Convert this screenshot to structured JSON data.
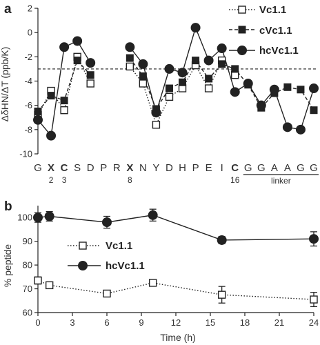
{
  "chart_data": [
    {
      "panel": "a",
      "type": "line",
      "ylabel": "ΔδHN/ΔT (ppb/K)",
      "ylim": [
        -10,
        2
      ],
      "yticks": [
        2,
        0,
        -2,
        -4,
        -6,
        -8,
        -10
      ],
      "grid": false,
      "legend": "top-right",
      "threshold_line": -3,
      "residues": [
        {
          "aa": "G",
          "bold": false,
          "num": ""
        },
        {
          "aa": "X",
          "bold": true,
          "num": "2"
        },
        {
          "aa": "C",
          "bold": true,
          "num": "3"
        },
        {
          "aa": "S",
          "bold": false,
          "num": ""
        },
        {
          "aa": "D",
          "bold": false,
          "num": ""
        },
        {
          "aa": "P",
          "bold": false,
          "num": ""
        },
        {
          "aa": "R",
          "bold": false,
          "num": ""
        },
        {
          "aa": "X",
          "bold": true,
          "num": "8"
        },
        {
          "aa": "N",
          "bold": false,
          "num": ""
        },
        {
          "aa": "Y",
          "bold": false,
          "num": ""
        },
        {
          "aa": "D",
          "bold": false,
          "num": ""
        },
        {
          "aa": "H",
          "bold": false,
          "num": ""
        },
        {
          "aa": "P",
          "bold": false,
          "num": ""
        },
        {
          "aa": "E",
          "bold": false,
          "num": ""
        },
        {
          "aa": "I",
          "bold": false,
          "num": ""
        },
        {
          "aa": "C",
          "bold": true,
          "num": "16"
        },
        {
          "aa": "G",
          "bold": false,
          "num": ""
        },
        {
          "aa": "G",
          "bold": false,
          "num": ""
        },
        {
          "aa": "A",
          "bold": false,
          "num": ""
        },
        {
          "aa": "A",
          "bold": false,
          "num": ""
        },
        {
          "aa": "G",
          "bold": false,
          "num": ""
        },
        {
          "aa": "G",
          "bold": false,
          "num": ""
        }
      ],
      "linker_label": "linker",
      "series": [
        {
          "name": "Vc1.1",
          "marker": "open-square",
          "line": "dotted",
          "values": [
            -6.8,
            -4.8,
            -6.4,
            -2.0,
            -4.2,
            null,
            null,
            -2.8,
            -4.2,
            -7.6,
            -5.3,
            -4.6,
            -2.7,
            -4.6,
            -2.3,
            -3.5,
            null,
            null,
            null,
            null,
            null,
            null
          ]
        },
        {
          "name": "cVc1.1",
          "marker": "filled-square",
          "line": "dashed",
          "values": [
            -6.5,
            -5.2,
            -5.6,
            -2.3,
            -3.5,
            null,
            null,
            -2.1,
            -3.6,
            -6.3,
            -4.6,
            -4.1,
            -2.3,
            -3.8,
            -2.6,
            -3.0,
            -4.3,
            -6.2,
            -5.0,
            -4.5,
            -4.7,
            -6.4
          ]
        },
        {
          "name": "hcVc1.1",
          "marker": "filled-circle",
          "line": "solid",
          "values": [
            -7.2,
            -8.5,
            -1.2,
            -0.7,
            -2.5,
            null,
            null,
            -1.2,
            -2.6,
            -6.6,
            -3.0,
            -3.3,
            0.4,
            -2.3,
            -1.3,
            -4.9,
            -4.2,
            -6.0,
            -4.7,
            -7.8,
            -8.0,
            -4.6
          ]
        }
      ]
    },
    {
      "panel": "b",
      "type": "line",
      "xlabel": "Time (h)",
      "ylabel": "% peptide",
      "xlim": [
        0,
        24
      ],
      "ylim": [
        60,
        105
      ],
      "xticks": [
        0,
        3,
        6,
        9,
        12,
        15,
        18,
        21,
        24
      ],
      "yticks": [
        60,
        70,
        80,
        90,
        100
      ],
      "grid": false,
      "legend": "center-left",
      "series": [
        {
          "name": "Vc1.1",
          "marker": "open-square",
          "line": "dotted",
          "x": [
            0,
            1,
            6,
            10,
            16,
            24
          ],
          "values": [
            73.5,
            71.5,
            68.0,
            72.5,
            67.5,
            65.5
          ],
          "errors": [
            1.5,
            1.0,
            1.0,
            1.0,
            3.5,
            3.0
          ]
        },
        {
          "name": "hcVc1.1",
          "marker": "filled-circle",
          "line": "solid",
          "x": [
            0,
            1,
            6,
            10,
            16,
            24
          ],
          "values": [
            100.0,
            100.5,
            98.0,
            101.0,
            90.5,
            91.0
          ],
          "errors": [
            2.0,
            2.0,
            2.5,
            2.5,
            1.5,
            3.0
          ]
        }
      ]
    }
  ]
}
